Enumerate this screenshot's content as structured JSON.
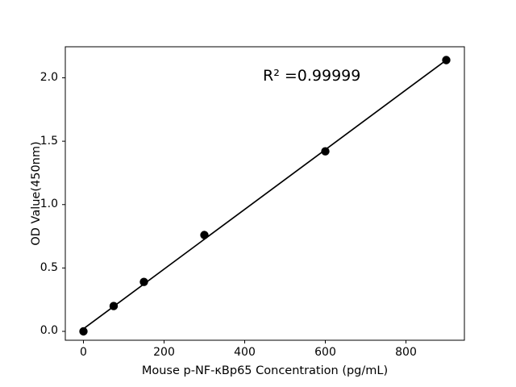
{
  "figure": {
    "background": "#ffffff"
  },
  "chart_data": {
    "type": "scatter",
    "title": "",
    "xlabel": "Mouse p-NF-κBp65 Concentration (pg/mL)",
    "ylabel": "OD Value(450nm)",
    "x": [
      0,
      75,
      150,
      300,
      600,
      900
    ],
    "y": [
      0.0,
      0.2,
      0.39,
      0.76,
      1.42,
      2.14
    ],
    "fit_line": {
      "x": [
        0,
        900
      ],
      "y": [
        0.02,
        2.14
      ]
    },
    "annotation": {
      "text": "R² =0.99999",
      "r_squared": "0.99999"
    },
    "x_tick_values": [
      0,
      200,
      400,
      600,
      800
    ],
    "x_tick_labels": [
      "0",
      "200",
      "400",
      "600",
      "800"
    ],
    "y_tick_values": [
      0.0,
      0.5,
      1.0,
      1.5,
      2.0
    ],
    "y_tick_labels": [
      "0.0",
      "0.5",
      "1.0",
      "1.5",
      "2.0"
    ],
    "xlim": [
      -45,
      945
    ],
    "ylim": [
      -0.07,
      2.245
    ],
    "grid": false,
    "legend": "none",
    "marker_color": "#000000",
    "marker_radius": 5.2,
    "line_color": "#000000",
    "line_width": 1.7,
    "axis_color": "#000000"
  }
}
